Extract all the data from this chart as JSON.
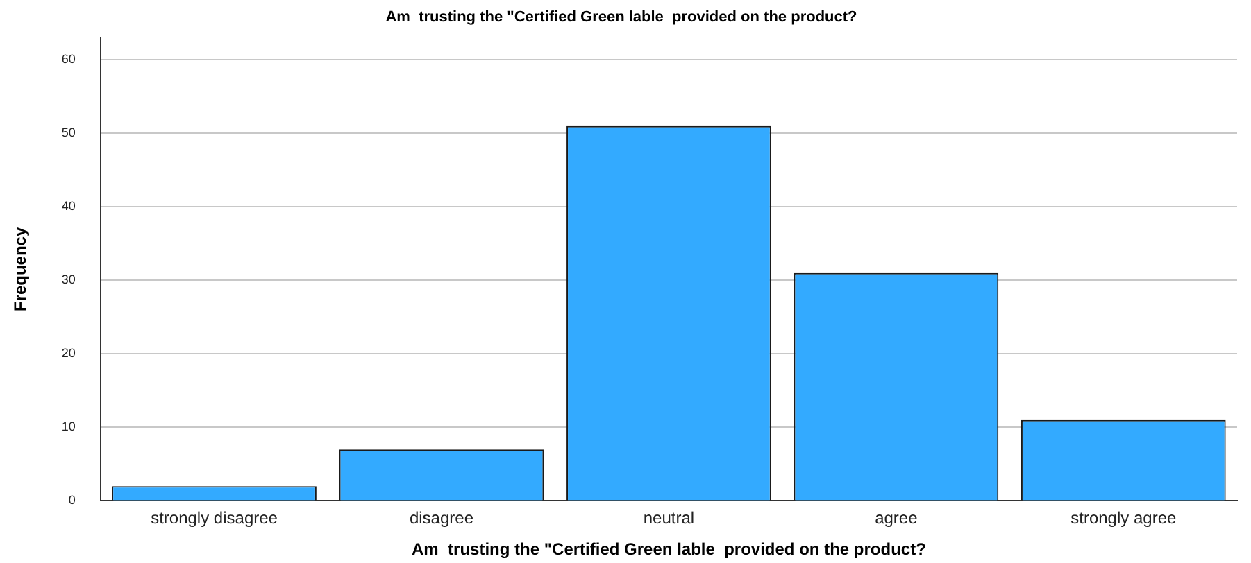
{
  "chart_data": {
    "type": "bar",
    "title": "Am  trusting the \"Certified Green lable  provided on the product?",
    "xlabel": "Am  trusting the \"Certified Green lable  provided on the product?",
    "ylabel": "Frequency",
    "categories": [
      "strongly disagree",
      "disagree",
      "neutral",
      "agree",
      "strongly agree"
    ],
    "values": [
      2,
      7,
      51,
      31,
      11
    ],
    "color": "#33aaff",
    "ylim": [
      0,
      63
    ],
    "yticks": [
      0,
      10,
      20,
      30,
      40,
      50,
      60
    ],
    "grid": "y",
    "legend": false
  }
}
